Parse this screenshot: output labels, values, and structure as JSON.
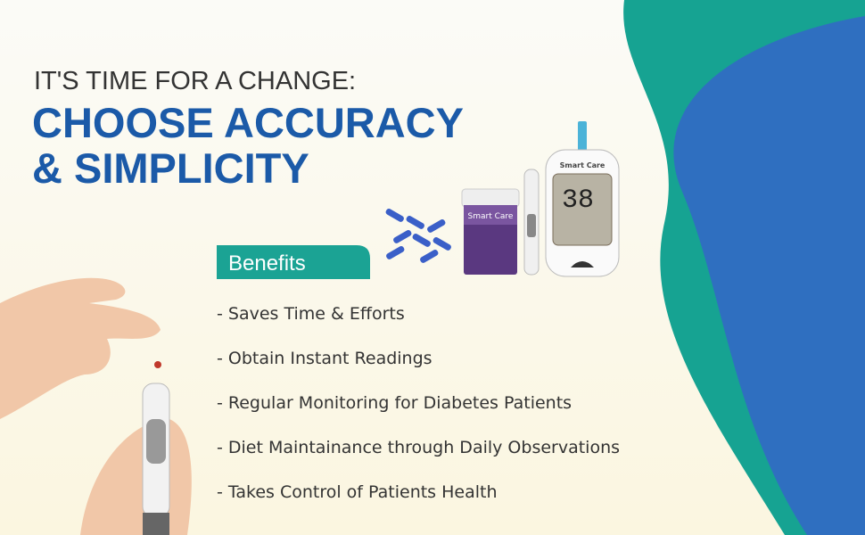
{
  "header": {
    "kicker": "IT'S TIME FOR A CHANGE:",
    "title_lines": [
      "CHOOSE ACCURACY",
      "& SIMPLICITY"
    ]
  },
  "benefits": {
    "heading": "Benefits",
    "items": [
      "- Saves Time & Efforts",
      "- Obtain Instant Readings",
      "- Regular Monitoring for Diabetes Patients",
      "- Diet Maintainance through Daily Observations",
      "- Takes Control of Patients Health"
    ]
  },
  "product": {
    "bottle_label": "Smart Care",
    "meter_label": "Smart Care",
    "meter_reading": "38"
  }
}
